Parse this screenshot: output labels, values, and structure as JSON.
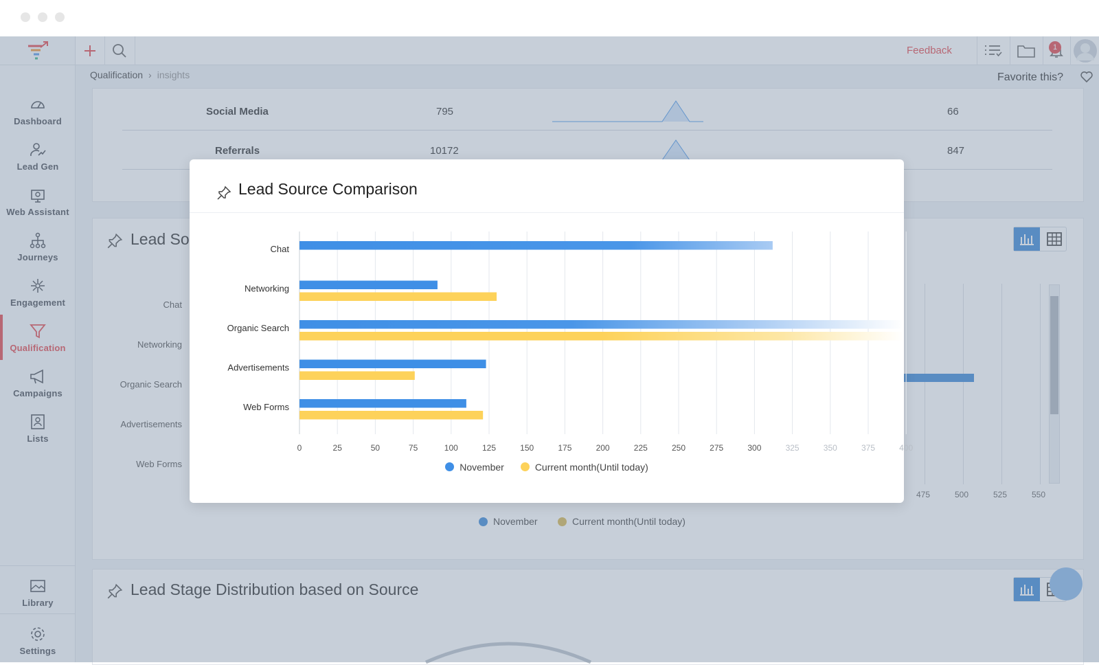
{
  "app": {
    "nav": [
      {
        "label": "Dashboard",
        "icon": "gauge-icon"
      },
      {
        "label": "Lead Gen",
        "icon": "lead-gen-icon"
      },
      {
        "label": "Web Assistant",
        "icon": "web-assistant-icon"
      },
      {
        "label": "Journeys",
        "icon": "journeys-icon"
      },
      {
        "label": "Engagement",
        "icon": "engagement-icon"
      },
      {
        "label": "Qualification",
        "icon": "funnel-icon"
      },
      {
        "label": "Campaigns",
        "icon": "megaphone-icon"
      },
      {
        "label": "Lists",
        "icon": "lists-icon"
      }
    ],
    "nav_bottom": [
      {
        "label": "Library",
        "icon": "image-icon"
      },
      {
        "label": "Settings",
        "icon": "gear-icon"
      }
    ],
    "active_nav": "Qualification",
    "accent_color": "#e0393e"
  },
  "topbar": {
    "feedback": "Feedback",
    "notification_count": "1"
  },
  "breadcrumb": {
    "parent": "Qualification",
    "separator": "›",
    "current": "insights"
  },
  "favorite": {
    "label": "Favorite this?"
  },
  "sources_table": {
    "rows": [
      {
        "source": "Social Media",
        "count": "795",
        "value": "66"
      },
      {
        "source": "Referrals",
        "count": "10172",
        "value": "847"
      }
    ]
  },
  "background_card": {
    "title": "Lead So",
    "categories": [
      "Chat",
      "Networking",
      "Organic Search",
      "Advertisements",
      "Web Forms"
    ],
    "visible_ticks": [
      "475",
      "500",
      "525",
      "550"
    ],
    "legend": [
      "November",
      "Current month(Until today)"
    ]
  },
  "stage_card": {
    "title": "Lead Stage Distribution based on Source"
  },
  "modal": {
    "title": "Lead Source Comparison"
  },
  "chart_data": {
    "type": "bar",
    "title": "Lead Source Comparison",
    "orientation": "horizontal",
    "categories": [
      "Chat",
      "Networking",
      "Organic Search",
      "Advertisements",
      "Web Forms"
    ],
    "series": [
      {
        "name": "November",
        "color": "#3f8fe6",
        "values": [
          312,
          91,
          420,
          123,
          110
        ]
      },
      {
        "name": "Current month(Until today)",
        "color": "#fdd25a",
        "values": [
          null,
          130,
          420,
          76,
          121
        ]
      }
    ],
    "x_ticks": [
      "0",
      "25",
      "50",
      "75",
      "100",
      "125",
      "150",
      "175",
      "200",
      "225",
      "250",
      "275",
      "300",
      "325",
      "350",
      "375",
      "400"
    ],
    "xlim": [
      0,
      400
    ],
    "grid": true,
    "legend_position": "bottom"
  }
}
